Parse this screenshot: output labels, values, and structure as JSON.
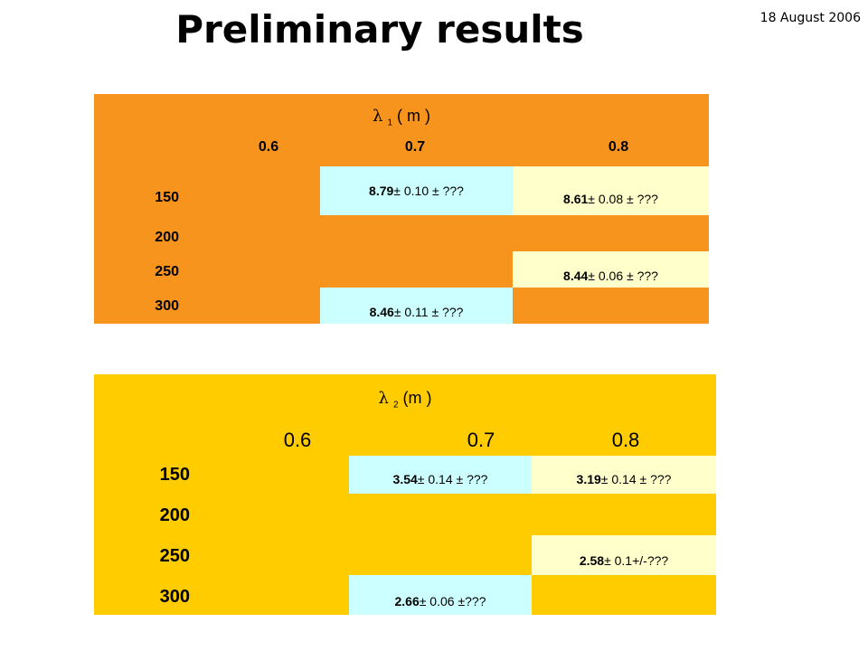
{
  "slide": {
    "title": "Preliminary results",
    "date": "18 August 2006"
  },
  "colors": {
    "orange": "#f7941d",
    "yellow": "#ffcc00",
    "light_blue": "#ccffff",
    "light_yellow": "#ffffcc"
  },
  "table1": {
    "header_symbol": "λ",
    "header_sub": "1",
    "header_unit": " ( m )",
    "columns": [
      "0.6",
      "0.7",
      "0.8"
    ],
    "rows": [
      {
        "label": "150",
        "c07_num": "8.79",
        "c07_rest": " ± 0.10 ± ???",
        "c08_num": "8.61",
        "c08_rest": " ± 0.08 ± ???"
      },
      {
        "label": "200"
      },
      {
        "label": "250",
        "c08_num": "8.44",
        "c08_rest": " ± 0.06 ± ???"
      },
      {
        "label": "300",
        "c07_num": "8.46",
        "c07_rest": " ± 0.11 ± ???"
      }
    ]
  },
  "table2": {
    "header_symbol": "λ",
    "header_sub": "2",
    "header_unit": " (m )",
    "columns": [
      "0.6",
      "0.7",
      "0.8"
    ],
    "rows": [
      {
        "label": "150",
        "c07_num": "3.54",
        "c07_rest": " ± 0.14 ± ???",
        "c08_num": "3.19",
        "c08_rest": " ± 0.14 ± ???"
      },
      {
        "label": "200"
      },
      {
        "label": "250",
        "c08_num": "2.58",
        "c08_rest": " ± 0.1+/-???"
      },
      {
        "label": "300",
        "c07_num": "2.66",
        "c07_rest": " ± 0.06 ±???"
      }
    ]
  }
}
